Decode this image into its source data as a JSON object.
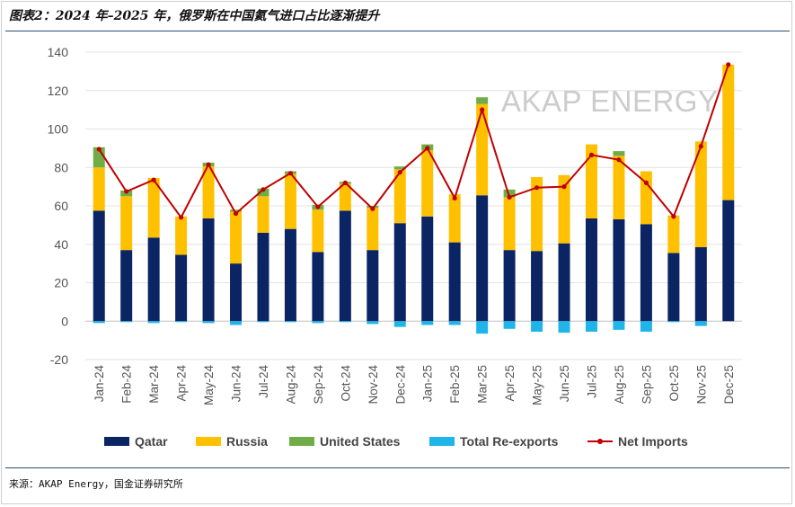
{
  "header": {
    "title": "图表2：2024 年–2025 年，俄罗斯在中国氦气进口占比逐渐提升"
  },
  "footer": {
    "source": "来源：AKAP Energy，国金证券研究所"
  },
  "watermark": "AKAP ENERGY",
  "colors": {
    "qatar": "#0b2463",
    "russia": "#ffc000",
    "united_states": "#70ad47",
    "reexports": "#1fb5ea",
    "net_imports": "#c00000",
    "rule": "#2a4d6e"
  },
  "chart_data": {
    "type": "bar",
    "stacked": true,
    "title": "",
    "xlabel": "",
    "ylabel": "",
    "ylim": [
      -20,
      140
    ],
    "yticks": [
      -20,
      0,
      20,
      40,
      60,
      80,
      100,
      120,
      140
    ],
    "categories": [
      "Jan-24",
      "Feb-24",
      "Mar-24",
      "Apr-24",
      "May-24",
      "Jun-24",
      "Jul-24",
      "Aug-24",
      "Sep-24",
      "Oct-24",
      "Nov-24",
      "Dec-24",
      "Jan-25",
      "Feb-25",
      "Mar-25",
      "Apr-25",
      "May-25",
      "Jun-25",
      "Jul-25",
      "Aug-25",
      "Sep-25",
      "Oct-25",
      "Nov-25",
      "Dec-25"
    ],
    "series": [
      {
        "name": "Qatar",
        "kind": "bar",
        "values": [
          57.5,
          37,
          43.5,
          34.5,
          53.5,
          30,
          46,
          48,
          36,
          57.5,
          37,
          51,
          54.5,
          41,
          65.5,
          37,
          36.5,
          40.5,
          53.5,
          53,
          50.5,
          35.5,
          38.5,
          63
        ]
      },
      {
        "name": "Russia",
        "kind": "bar",
        "values": [
          22.5,
          28,
          31,
          20,
          27,
          27,
          19,
          28.5,
          22,
          14,
          22,
          28,
          34.5,
          25,
          47.5,
          27.5,
          38.5,
          35.5,
          38.5,
          33,
          27.5,
          19.5,
          55,
          70.5
        ]
      },
      {
        "name": "United States",
        "kind": "bar",
        "values": [
          10.5,
          3,
          0,
          0,
          2,
          1,
          4,
          1.5,
          2.5,
          1,
          1,
          1.5,
          3,
          0,
          3.5,
          4,
          0,
          0,
          0,
          2.5,
          0,
          0,
          0,
          0
        ]
      },
      {
        "name": "Total Re-exports",
        "kind": "bar",
        "values": [
          -1,
          -0.5,
          -1,
          -0.5,
          -1,
          -2,
          -0.5,
          -0.5,
          -1,
          -0.5,
          -1.5,
          -3,
          -2,
          -2,
          -6.5,
          -4,
          -5.5,
          -6,
          -5.5,
          -4.5,
          -5.5,
          -0.5,
          -2.5,
          0
        ]
      },
      {
        "name": "Net Imports",
        "kind": "line",
        "values": [
          89.5,
          67.5,
          73.5,
          54,
          81.5,
          56,
          68.5,
          77,
          59.5,
          72,
          58.5,
          77.5,
          90,
          64,
          110,
          64.5,
          69.5,
          70,
          86.5,
          84,
          72,
          54.5,
          91,
          133.5
        ]
      }
    ],
    "legend": {
      "position": "bottom",
      "entries": [
        "Qatar",
        "Russia",
        "United States",
        "Total Re-exports",
        "Net Imports"
      ]
    },
    "grid": "horizontal"
  }
}
